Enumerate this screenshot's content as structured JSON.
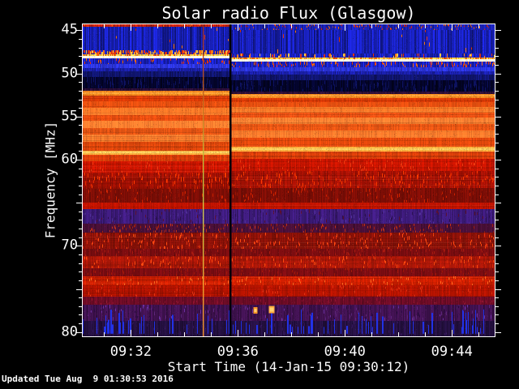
{
  "page": {
    "background": "#000000",
    "text_color": "#ffffff"
  },
  "footer": "Updated Tue Aug  9 01:30:53 2016",
  "chart_data": {
    "type": "heatmap",
    "title": "Solar radio Flux (Glasgow)",
    "xlabel": "Start Time (14-Jan-15 09:30:12)",
    "ylabel": "Frequency [MHz]",
    "legend": "none",
    "grid": "off",
    "x_axis": {
      "start": "09:30:12",
      "end": "09:45:36",
      "major_ticks": [
        "09:32",
        "09:36",
        "09:40",
        "09:44"
      ],
      "minor_tick_interval_seconds": 60,
      "major_tick_every_minutes": 4
    },
    "y_axis": {
      "top_mhz": 44.3,
      "bottom_mhz": 80.5,
      "scale": "linear-inverted",
      "labeled_ticks": [
        45,
        50,
        55,
        60,
        70,
        80
      ],
      "major_tick_step_mhz": 5,
      "minor_tick_step_mhz": 1
    },
    "bands": [
      {
        "f": 44.3,
        "c": "#c42108",
        "cR": "#1a22b8",
        "n": 0.25,
        "sR": 4,
        "bl": {
          "c": [
            "#dd2200",
            "#ff6a00"
          ],
          "dL": 0.15,
          "dR": 0.3,
          "l": [
            1,
            3
          ]
        }
      },
      {
        "f": 44.6,
        "c": "#171fb2",
        "n": 0.38,
        "sR": 4,
        "bl": {
          "c": [
            "#dd3300",
            "#ff7711"
          ],
          "dL": 0.07,
          "dR": 0.035,
          "l": [
            2,
            6
          ]
        }
      },
      {
        "f": 47.3,
        "c": "#1a22bc",
        "n": 0.3,
        "sR": 4,
        "bl": {
          "c": [
            "#ff7711",
            "#ffcc44",
            "#e03010"
          ],
          "dL": 0.6,
          "dR": 0.16,
          "l": [
            3,
            5
          ],
          "w": 2
        }
      },
      {
        "f": 47.75,
        "c": "#ffd24e",
        "n": 0.15,
        "sR": 4,
        "bl": {
          "c": [
            "#e04808",
            "#ff6a00"
          ],
          "dL": 0.25,
          "dR": 0.25,
          "l": [
            2,
            4
          ]
        }
      },
      {
        "f": 48.0,
        "c": "#fffbe8",
        "n": 0.05,
        "sR": 4
      },
      {
        "f": 48.25,
        "c": "#1a22c4",
        "n": 0.3,
        "sR": 4,
        "bl": {
          "c": [
            "#ee3300",
            "#ff6a00"
          ],
          "dL": 0.3,
          "dR": 0.3,
          "l": [
            2,
            5
          ]
        }
      },
      {
        "f": 48.9,
        "c": "#2d36e0",
        "n": 0.18,
        "sR": 4
      },
      {
        "f": 49.35,
        "c": "#1a1fa8",
        "n": 0.22,
        "sR": 4
      },
      {
        "f": 49.8,
        "c": "#10156e",
        "n": 0.25,
        "sR": 4
      },
      {
        "f": 50.4,
        "c": "#04052c",
        "n": 0.45,
        "sR": 4,
        "bl": {
          "c": [
            "#0d1260"
          ],
          "dL": 0.3,
          "dR": 0.3,
          "l": [
            4,
            10
          ]
        }
      },
      {
        "f": 51.7,
        "c": "#2e0f36",
        "n": 0.25,
        "sR": 4
      },
      {
        "f": 52.05,
        "c": "#f5871e",
        "core": "#ffa238",
        "n": 0.1,
        "sR": 4
      },
      {
        "f": 52.55,
        "c": "#e03c06",
        "n": 0.09,
        "sR": 3,
        "st": 1
      },
      {
        "f": 53.2,
        "c": "#e85010",
        "n": 0.09,
        "sR": 1,
        "st": 1
      },
      {
        "f": 54.0,
        "c": "#ff7a28",
        "n": 0.09,
        "sR": -1,
        "st": 1
      },
      {
        "f": 54.8,
        "c": "#ee5010",
        "n": 0.09,
        "sR": -3,
        "st": 1
      },
      {
        "f": 55.5,
        "c": "#ff8030",
        "n": 0.1,
        "sR": -4,
        "st": 1
      },
      {
        "f": 56.3,
        "c": "#ee5814",
        "n": 0.1,
        "sR": -5,
        "st": 1
      },
      {
        "f": 57.1,
        "c": "#ff7c2c",
        "n": 0.1,
        "sR": -5,
        "st": 1
      },
      {
        "f": 57.9,
        "c": "#e84a0c",
        "n": 0.1,
        "sR": -5,
        "st": 1
      },
      {
        "f": 58.95,
        "c": "#ffb040",
        "core": "#ffcf60",
        "n": 0.08,
        "sR": -5
      },
      {
        "f": 59.45,
        "c": "#e0400a",
        "n": 0.1,
        "sR": -4,
        "st": 1
      },
      {
        "f": 60.2,
        "c": "#d01600",
        "n": 0.12,
        "sR": -3,
        "st": 1,
        "bl": {
          "c": [
            "#ee3a10"
          ],
          "dL": 0.18,
          "dR": 0.18,
          "l": [
            2,
            5
          ]
        }
      },
      {
        "f": 61.5,
        "c": "#a61104",
        "n": 0.15,
        "sR": -2,
        "st": 1,
        "bl": {
          "c": [
            "#ff3a00",
            "#e02800"
          ],
          "dL": 0.5,
          "dR": 0.5,
          "l": [
            2,
            6
          ]
        }
      },
      {
        "f": 63.4,
        "c": "#7e0e06",
        "n": 0.15,
        "sR": -1,
        "bl": {
          "c": [
            "#d02200",
            "#9c1404"
          ],
          "dL": 0.4,
          "dR": 0.4,
          "l": [
            2,
            5
          ]
        }
      },
      {
        "f": 65.0,
        "c": "#c21400",
        "n": 0.1,
        "sR": 0,
        "st": 1
      },
      {
        "f": 65.75,
        "c": "#3d1b7a",
        "n": 0.22,
        "sR": 0,
        "bl": {
          "c": [
            "#5a1030",
            "#2a1050",
            "#503098"
          ],
          "dL": 0.3,
          "dR": 0.3,
          "l": [
            2,
            5
          ]
        }
      },
      {
        "f": 67.4,
        "c": "#4a1038",
        "n": 0.18,
        "sR": 0,
        "bl": {
          "c": [
            "#a02010",
            "#c03018"
          ],
          "dL": 0.3,
          "dR": 0.3,
          "l": [
            2,
            4
          ]
        }
      },
      {
        "f": 68.45,
        "c": "#8e1208",
        "n": 0.15,
        "sR": 0,
        "st": 1,
        "bl": {
          "c": [
            "#e03010",
            "#ff4a10"
          ],
          "dL": 0.45,
          "dR": 0.45,
          "l": [
            2,
            5
          ]
        }
      },
      {
        "f": 70.3,
        "c": "#7a0d10",
        "n": 0.14,
        "sR": 0,
        "bl": {
          "c": [
            "#a81a10"
          ],
          "dL": 0.2,
          "dR": 0.2,
          "l": [
            2,
            4
          ]
        }
      },
      {
        "f": 71.2,
        "c": "#b01808",
        "n": 0.12,
        "sR": 0,
        "st": 1,
        "bl": {
          "c": [
            "#ff4a10",
            "#d82808"
          ],
          "dL": 0.35,
          "dR": 0.35,
          "l": [
            2,
            5
          ]
        }
      },
      {
        "f": 72.6,
        "c": "#7c0d12",
        "n": 0.14,
        "sR": 0,
        "bl": {
          "c": [
            "#a01808"
          ],
          "dL": 0.2,
          "dR": 0.2,
          "l": [
            2,
            4
          ]
        }
      },
      {
        "f": 73.5,
        "c": "#d42000",
        "n": 0.1,
        "sR": 0,
        "st": 1,
        "bl": {
          "c": [
            "#ff6a20",
            "#e83008"
          ],
          "dL": 0.3,
          "dR": 0.3,
          "l": [
            2,
            4
          ]
        }
      },
      {
        "f": 74.6,
        "c": "#b81400",
        "n": 0.12,
        "sR": 0,
        "st": 1,
        "bl": {
          "c": [
            "#e03010"
          ],
          "dL": 0.18,
          "dR": 0.18,
          "l": [
            2,
            4
          ]
        }
      },
      {
        "f": 75.9,
        "c": "#6e0c26",
        "n": 0.16,
        "sR": 0,
        "bl": {
          "c": [
            "#8e1430"
          ],
          "dL": 0.2,
          "dR": 0.2,
          "l": [
            2,
            4
          ]
        }
      },
      {
        "f": 76.8,
        "c": "#401250",
        "n": 0.25,
        "sR": 0,
        "bl": {
          "c": [
            "#5a2478",
            "#6a30a0",
            "#2a0a44"
          ],
          "dL": 0.35,
          "dR": 0.35,
          "l": [
            2,
            5
          ]
        }
      },
      {
        "f": 78.75,
        "c": "#241040",
        "n": 0.25,
        "sR": 0,
        "bl": {
          "c": [
            "#321458"
          ],
          "dL": 0.2,
          "dR": 0.2,
          "l": [
            2,
            5
          ]
        }
      }
    ],
    "features": {
      "bright_emission_lines_mhz": [
        48.1,
        52.3,
        59.2
      ],
      "vertical_line": {
        "time": "09:34:41",
        "color_profile": [
          "#9c2418",
          "#b84a1c",
          "#c87820",
          "#bcc23c",
          "#cfcf46",
          "#d8c340",
          "#f0a630",
          "#ff9828"
        ]
      },
      "segment_boundary": {
        "time": "09:35:45",
        "note": "data gap; channel bands shift slightly between left and right segments"
      },
      "rfi_stripes": {
        "freq_range_mhz": [
          77.6,
          80.2
        ],
        "color": "#2232e8",
        "density": 0.16
      },
      "hot_spots": [
        {
          "time": "09:36:39",
          "freq_mhz": 77.5,
          "w": 5,
          "h": 8,
          "color": "#ff9828"
        },
        {
          "time": "09:37:16",
          "freq_mhz": 77.4,
          "w": 7,
          "h": 9,
          "color": "#ffa838"
        }
      ]
    }
  }
}
